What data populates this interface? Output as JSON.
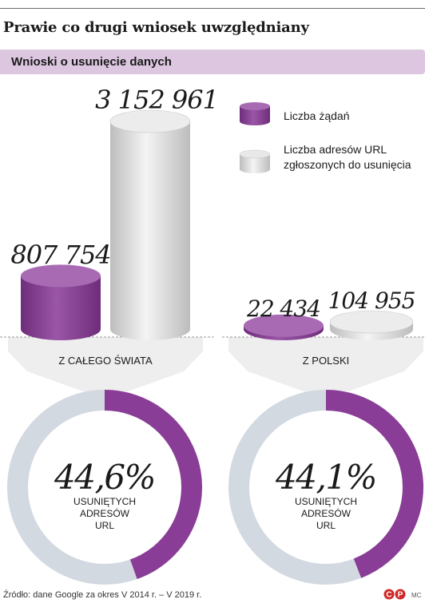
{
  "header": {
    "title": "Prawie co drugi wniosek uwzględniany",
    "subtitle": "Wnioski o usunięcie danych"
  },
  "legend": {
    "requests": "Liczba żądań",
    "urls_line1": "Liczba adresów URL",
    "urls_line2": "zgłoszonych do usunięcia"
  },
  "colors": {
    "purple": "#8a3d96",
    "purple_light": "#a86bb3",
    "gray": "#d3d9e1",
    "silver": "#dcdcdc",
    "panel": "#eeeeee"
  },
  "chart_data": [
    {
      "type": "bar",
      "categories": [
        "Z CAŁEGO ŚWIATA",
        "Z POLSKI"
      ],
      "series": [
        {
          "name": "Liczba żądań",
          "values": [
            807754,
            22434
          ],
          "labels": [
            "807 754",
            "22 434"
          ]
        },
        {
          "name": "Liczba adresów URL zgłoszonych do usunięcia",
          "values": [
            3152961,
            104955
          ],
          "labels": [
            "3 152 961",
            "104 955"
          ]
        }
      ]
    },
    {
      "type": "pie",
      "category": "Z CAŁEGO ŚWIATA",
      "value": 44.6,
      "value_label": "44,6%",
      "caption": [
        "USUNIĘTYCH",
        "ADRESÓW",
        "URL"
      ]
    },
    {
      "type": "pie",
      "category": "Z POLSKI",
      "value": 44.1,
      "value_label": "44,1%",
      "caption": [
        "USUNIĘTYCH",
        "ADRESÓW",
        "URL"
      ]
    }
  ],
  "footer": {
    "source": "Źródło: dane Google za okres V 2014 r. – V 2019 r.",
    "logo": "©P",
    "credit": "MC"
  }
}
